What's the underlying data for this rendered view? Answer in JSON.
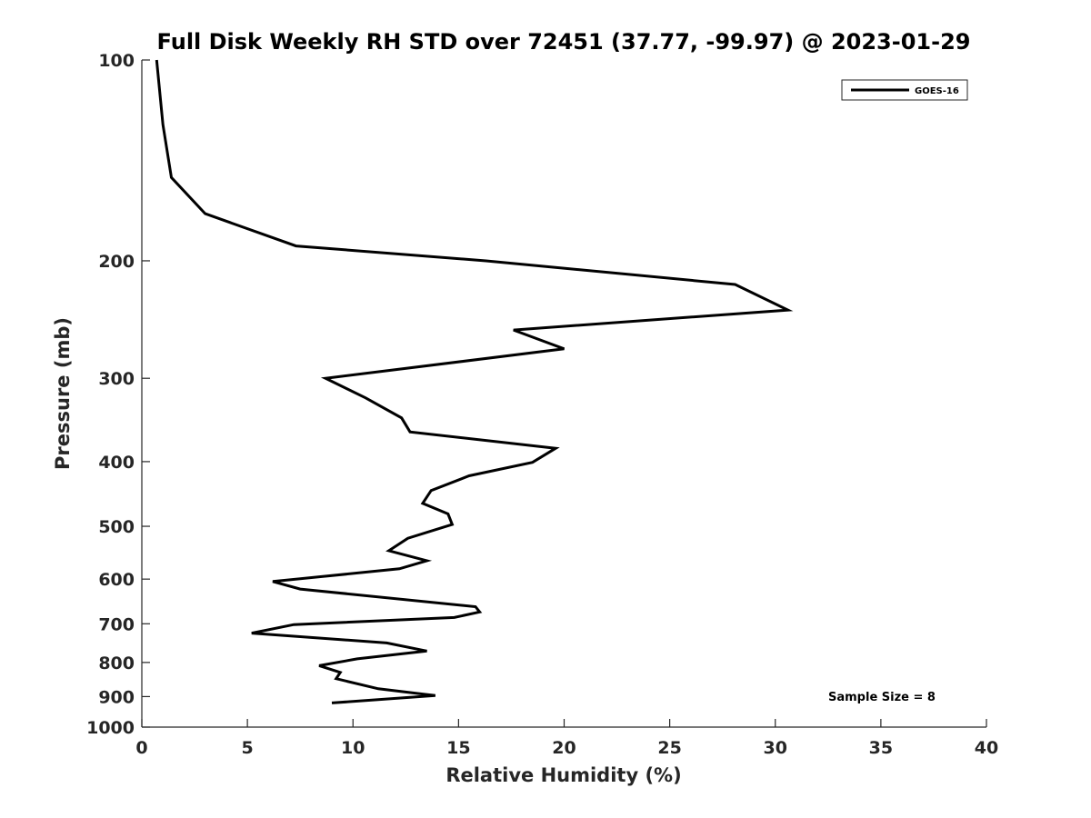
{
  "chart_data": {
    "type": "line",
    "title": "Full Disk Weekly RH STD over 72451 (37.77, -99.97) @ 2023-01-29",
    "xlabel": "Relative Humidity (%)",
    "ylabel": "Pressure (mb)",
    "xlim": [
      0,
      40
    ],
    "ylim": [
      100,
      1000
    ],
    "y_scale": "log",
    "y_reversed": true,
    "grid": false,
    "xticks": [
      0,
      5,
      10,
      15,
      20,
      25,
      30,
      35,
      40
    ],
    "xtick_labels": [
      "0",
      "5",
      "10",
      "15",
      "20",
      "25",
      "30",
      "35",
      "40"
    ],
    "yticks": [
      100,
      200,
      300,
      400,
      500,
      600,
      700,
      800,
      900,
      1000
    ],
    "ytick_labels": [
      "100",
      "200",
      "300",
      "400",
      "500",
      "600",
      "700",
      "800",
      "900",
      "1000"
    ],
    "legend": {
      "position": "top-right",
      "entries": [
        "GOES-16"
      ]
    },
    "annotation": "Sample Size = 8",
    "series": [
      {
        "name": "GOES-16",
        "color": "#000000",
        "points": [
          [
            0.7,
            100
          ],
          [
            1.0,
            125
          ],
          [
            1.4,
            150
          ],
          [
            3.0,
            170
          ],
          [
            7.3,
            190
          ],
          [
            16.3,
            200
          ],
          [
            28.1,
            217
          ],
          [
            30.6,
            237
          ],
          [
            17.6,
            254
          ],
          [
            20.0,
            271
          ],
          [
            8.7,
            300
          ],
          [
            10.6,
            321
          ],
          [
            12.3,
            344
          ],
          [
            12.7,
            361
          ],
          [
            19.6,
            382
          ],
          [
            18.5,
            401
          ],
          [
            15.5,
            420
          ],
          [
            13.7,
            442
          ],
          [
            13.3,
            462
          ],
          [
            14.5,
            479
          ],
          [
            14.7,
            497
          ],
          [
            12.6,
            521
          ],
          [
            11.7,
            544
          ],
          [
            13.5,
            563
          ],
          [
            12.2,
            579
          ],
          [
            6.2,
            605
          ],
          [
            7.5,
            621
          ],
          [
            15.8,
            660
          ],
          [
            16.0,
            672
          ],
          [
            14.8,
            685
          ],
          [
            7.2,
            702
          ],
          [
            5.2,
            723
          ],
          [
            11.6,
            748
          ],
          [
            13.5,
            769
          ],
          [
            10.2,
            790
          ],
          [
            8.4,
            809
          ],
          [
            9.4,
            828
          ],
          [
            9.2,
            846
          ],
          [
            11.2,
            876
          ],
          [
            13.9,
            897
          ],
          [
            9.0,
            920
          ]
        ]
      }
    ]
  }
}
